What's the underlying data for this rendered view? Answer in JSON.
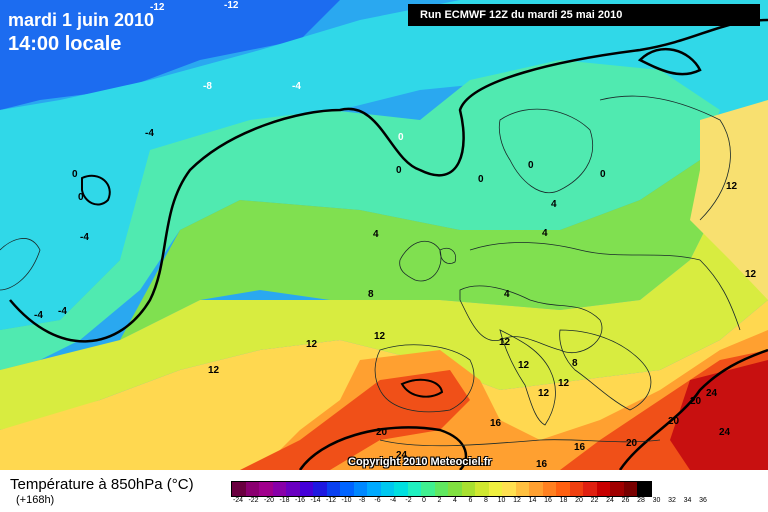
{
  "header": {
    "date": "mardi 1 juin 2010",
    "time": "14:00 locale",
    "run": "Run ECMWF 12Z du mardi 25 mai 2010"
  },
  "copyright": "Copyright 2010 Meteociel.fr",
  "footer": {
    "variable": "Température à 850hPa (°C)",
    "forecast_hour": "(+168h)"
  },
  "scale": {
    "ticks": [
      "-24",
      "-22",
      "-20",
      "-18",
      "-16",
      "-14",
      "-12",
      "-10",
      "-8",
      "-6",
      "-4",
      "-2",
      "0",
      "2",
      "4",
      "6",
      "8",
      "10",
      "12",
      "14",
      "16",
      "18",
      "20",
      "22",
      "24",
      "26",
      "28",
      "30",
      "32",
      "34",
      "36"
    ],
    "colors": [
      "#6a0040",
      "#8a0070",
      "#a0008c",
      "#8800a8",
      "#6a00c0",
      "#4400d8",
      "#1e18e0",
      "#0a40f0",
      "#0064ff",
      "#0088ff",
      "#00aaff",
      "#00c8f0",
      "#00e0e0",
      "#20f0c0",
      "#40f090",
      "#60e860",
      "#80e040",
      "#a8e030",
      "#d0e830",
      "#f0f040",
      "#ffe050",
      "#ffc040",
      "#ffa030",
      "#ff8020",
      "#ff6010",
      "#f04010",
      "#e02010",
      "#c80000",
      "#a00000",
      "#780000",
      "#000000"
    ]
  },
  "map": {
    "labels": [
      {
        "text": "-12"
      },
      {
        "text": "-12"
      },
      {
        "text": "-8"
      },
      {
        "text": "-4"
      },
      {
        "text": "-4"
      },
      {
        "text": "0"
      },
      {
        "text": "0"
      },
      {
        "text": "-4"
      },
      {
        "text": "-4"
      },
      {
        "text": "-4"
      },
      {
        "text": "0"
      },
      {
        "text": "0"
      },
      {
        "text": "0"
      },
      {
        "text": "0"
      },
      {
        "text": "4"
      },
      {
        "text": "4"
      },
      {
        "text": "4"
      },
      {
        "text": "4"
      },
      {
        "text": "0"
      },
      {
        "text": "12"
      },
      {
        "text": "12"
      },
      {
        "text": "12"
      },
      {
        "text": "8"
      },
      {
        "text": "12"
      },
      {
        "text": "12"
      },
      {
        "text": "12"
      },
      {
        "text": "12"
      },
      {
        "text": "12"
      },
      {
        "text": "12"
      },
      {
        "text": "8"
      },
      {
        "text": "16"
      },
      {
        "text": "16"
      },
      {
        "text": "16"
      },
      {
        "text": "20"
      },
      {
        "text": "24"
      },
      {
        "text": "20"
      },
      {
        "text": "20"
      },
      {
        "text": "20"
      },
      {
        "text": "24"
      },
      {
        "text": "24"
      }
    ]
  }
}
